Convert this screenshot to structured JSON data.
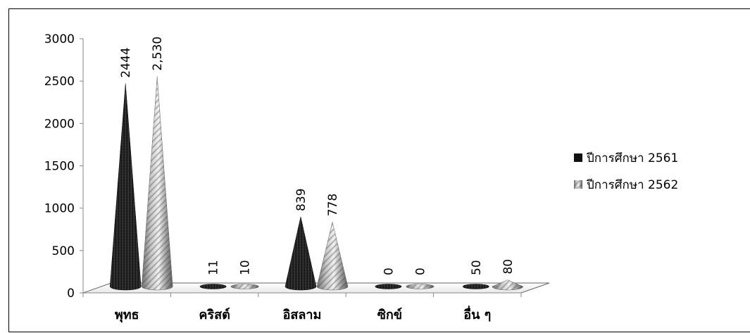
{
  "chart_data": {
    "type": "bar",
    "style": "3d-cone",
    "categories": [
      "พุทธ",
      "คริสต์",
      "อิสลาม",
      "ซิกข์",
      "อื่น ๆ"
    ],
    "series": [
      {
        "name": "ปีการศึกษา 2561",
        "values": [
          2444,
          11,
          839,
          0,
          50
        ],
        "labels": [
          "2444",
          "11",
          "839",
          "0",
          "50"
        ],
        "color": "#1c1c1c"
      },
      {
        "name": "ปีการศึกษา 2562",
        "values": [
          2530,
          10,
          778,
          0,
          80
        ],
        "labels": [
          "2,530",
          "10",
          "778",
          "0",
          "80"
        ],
        "color": "#8c8c8c"
      }
    ],
    "ylim": [
      0,
      3000
    ],
    "yticks": [
      "0",
      "500",
      "1000",
      "1500",
      "2000",
      "2500",
      "3000"
    ],
    "legend_position": "right",
    "grid": false
  }
}
